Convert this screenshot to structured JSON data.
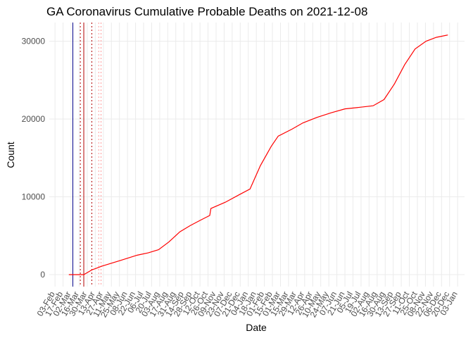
{
  "chart_data": {
    "type": "line",
    "title": "GA Coronavirus Cumulative Probable Deaths on 2021-12-08",
    "x_label": "Date",
    "y_label": "Count",
    "color": "#ff0000",
    "x": [
      24,
      50,
      64,
      82,
      113,
      143,
      162,
      180,
      198,
      217,
      235,
      253,
      269,
      271,
      296,
      321,
      339,
      345,
      357,
      376,
      388,
      412,
      431,
      455,
      480,
      504,
      529,
      553,
      572,
      590,
      608,
      626,
      645,
      663,
      683
    ],
    "values": [
      0,
      0,
      600,
      1100,
      1800,
      2500,
      2800,
      3200,
      4200,
      5500,
      6300,
      7000,
      7600,
      8500,
      9300,
      10300,
      11000,
      12000,
      14000,
      16500,
      17800,
      18700,
      19500,
      20200,
      20800,
      21300,
      21500,
      21700,
      22500,
      24500,
      27000,
      29000,
      30000,
      30500,
      30800
    ],
    "vlines": [
      {
        "x": 31,
        "color": "#00008b",
        "dashed": false
      },
      {
        "x": 50,
        "color": "#b00000",
        "dashed": false
      },
      {
        "x": 44,
        "color": "#b00000",
        "dashed": true
      },
      {
        "x": 64,
        "color": "#b00000",
        "dashed": true
      },
      {
        "x": 76,
        "color": "#ff9999",
        "dashed": true
      },
      {
        "x": 80,
        "color": "#ff9999",
        "dashed": true
      }
    ],
    "xlim": [
      -10,
      712
    ],
    "ylim": [
      -1540,
      32400
    ],
    "yticks": [
      0,
      10000,
      20000,
      30000
    ],
    "xticks": [
      {
        "value": 0,
        "label": "03-Feb"
      },
      {
        "value": 14,
        "label": "17-Feb"
      },
      {
        "value": 28,
        "label": "02-Mar"
      },
      {
        "value": 42,
        "label": "16-Mar"
      },
      {
        "value": 56,
        "label": "30-Mar"
      },
      {
        "value": 70,
        "label": "13-Apr"
      },
      {
        "value": 84,
        "label": "27-Apr"
      },
      {
        "value": 98,
        "label": "11-May"
      },
      {
        "value": 112,
        "label": "25-May"
      },
      {
        "value": 126,
        "label": "08-Jun"
      },
      {
        "value": 140,
        "label": "22-Jun"
      },
      {
        "value": 154,
        "label": "06-Jul"
      },
      {
        "value": 168,
        "label": "20-Jul"
      },
      {
        "value": 182,
        "label": "03-Aug"
      },
      {
        "value": 196,
        "label": "17-Aug"
      },
      {
        "value": 210,
        "label": "31-Aug"
      },
      {
        "value": 224,
        "label": "14-Sep"
      },
      {
        "value": 238,
        "label": "28-Sep"
      },
      {
        "value": 252,
        "label": "12-Oct"
      },
      {
        "value": 266,
        "label": "26-Oct"
      },
      {
        "value": 280,
        "label": "09-Nov"
      },
      {
        "value": 294,
        "label": "23-Nov"
      },
      {
        "value": 308,
        "label": "07-Dec"
      },
      {
        "value": 322,
        "label": "21-Dec"
      },
      {
        "value": 336,
        "label": "04-Jan"
      },
      {
        "value": 350,
        "label": "18-Jan"
      },
      {
        "value": 364,
        "label": "01-Feb"
      },
      {
        "value": 378,
        "label": "15-Feb"
      },
      {
        "value": 392,
        "label": "01-Mar"
      },
      {
        "value": 406,
        "label": "15-Mar"
      },
      {
        "value": 420,
        "label": "29-Mar"
      },
      {
        "value": 434,
        "label": "12-Apr"
      },
      {
        "value": 448,
        "label": "26-Apr"
      },
      {
        "value": 462,
        "label": "10-May"
      },
      {
        "value": 476,
        "label": "24-May"
      },
      {
        "value": 490,
        "label": "07-Jun"
      },
      {
        "value": 504,
        "label": "21-Jun"
      },
      {
        "value": 518,
        "label": "05-Jul"
      },
      {
        "value": 532,
        "label": "19-Jul"
      },
      {
        "value": 546,
        "label": "02-Aug"
      },
      {
        "value": 560,
        "label": "16-Aug"
      },
      {
        "value": 574,
        "label": "30-Aug"
      },
      {
        "value": 588,
        "label": "13-Sep"
      },
      {
        "value": 602,
        "label": "27-Sep"
      },
      {
        "value": 616,
        "label": "11-Oct"
      },
      {
        "value": 630,
        "label": "25-Oct"
      },
      {
        "value": 644,
        "label": "08-Nov"
      },
      {
        "value": 658,
        "label": "22-Nov"
      },
      {
        "value": 672,
        "label": "06-Dec"
      },
      {
        "value": 686,
        "label": "20-Dec"
      },
      {
        "value": 700,
        "label": "03-Jan"
      }
    ],
    "grid": true
  }
}
